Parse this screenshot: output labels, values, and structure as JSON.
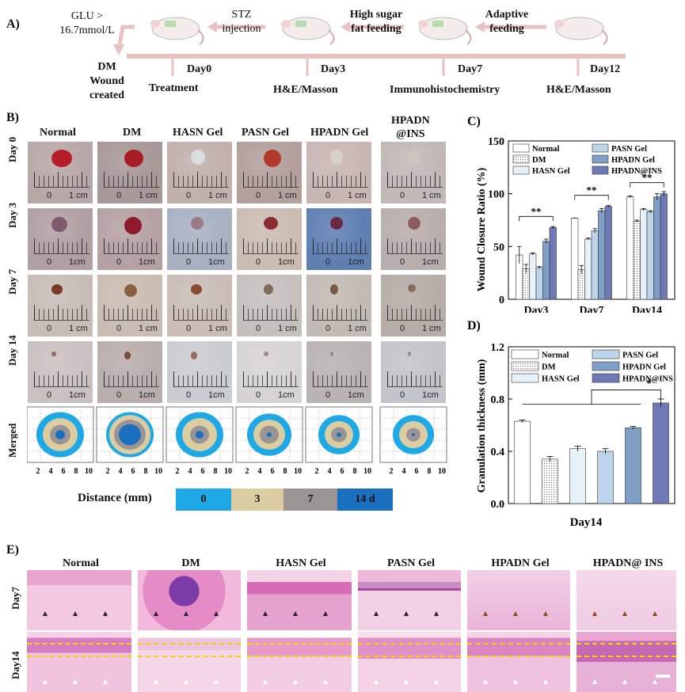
{
  "panel_a": {
    "letter": "A)",
    "glu": "GLU >",
    "glu2": "16.7mmol/L",
    "stz": "STZ",
    "stz2": "injection",
    "hsf": "High sugar",
    "hsf2": "fat feeding",
    "adaptive": "Adaptive",
    "adaptive2": "feeding",
    "dm1": "DM",
    "dm2": "Wound",
    "dm3": "created",
    "day0": "Day0",
    "day3": "Day3",
    "day7": "Day7",
    "day12": "Day12",
    "treatment": "Treatment",
    "he_masson1": "H&E/Masson",
    "immuno": "Immunohistochemistry",
    "he_masson2": "H&E/Masson"
  },
  "panel_b": {
    "letter": "B)",
    "columns": [
      "Normal",
      "DM",
      "HASN Gel",
      "PASN Gel",
      "HPADN Gel",
      "HPADN\n@INS"
    ],
    "col_hpadn_ins_1": "HPADN",
    "col_hpadn_ins_2": "@INS",
    "rows": [
      "Day 0",
      "Day 3",
      "Day 7",
      "Day 14",
      "Merged"
    ],
    "ruler_zero": "0",
    "ruler_cm": "1 cm",
    "ruler_cm_short": "1cm",
    "axis_ticks": [
      "2",
      "4",
      "6",
      "8",
      "10"
    ],
    "distance_label": "Distance (mm)",
    "legend": [
      {
        "label": "0",
        "color": "#1ea8e6"
      },
      {
        "label": "3",
        "color": "#dccca2"
      },
      {
        "label": "7",
        "color": "#9a9494"
      },
      {
        "label": "14 d",
        "color": "#1a6fbf"
      }
    ]
  },
  "chart_data": [
    {
      "type": "bar",
      "panel": "C)",
      "ylabel": "Wound Closure Ratio (%)",
      "xlabel": "",
      "categories": [
        "Day3",
        "Day7",
        "Day14"
      ],
      "ylim": [
        0,
        150
      ],
      "yticks": [
        "0",
        "50",
        "100",
        "150"
      ],
      "series": [
        {
          "name": "Normal",
          "values": [
            42,
            77,
            97
          ],
          "errors": [
            8,
            0,
            1
          ]
        },
        {
          "name": "DM",
          "values": [
            29,
            28,
            74
          ],
          "errors": [
            4,
            4,
            1
          ]
        },
        {
          "name": "HASN Gel",
          "values": [
            43,
            57,
            85
          ],
          "errors": [
            1,
            1,
            1
          ]
        },
        {
          "name": "PASN Gel",
          "values": [
            30,
            65,
            83
          ],
          "errors": [
            1,
            2,
            1
          ]
        },
        {
          "name": "HPADN Gel",
          "values": [
            55,
            84,
            97
          ],
          "errors": [
            2,
            2,
            3
          ]
        },
        {
          "name": "HPADN@INS",
          "values": [
            68,
            88,
            100
          ],
          "errors": [
            1,
            1,
            2
          ]
        }
      ],
      "annotations": [
        "**",
        "**",
        "**"
      ],
      "legend_position": "top"
    },
    {
      "type": "bar",
      "panel": "D)",
      "ylabel": "Granulation thickness (mm)",
      "xlabel": "Day14",
      "categories": [
        "Normal",
        "DM",
        "HASN Gel",
        "PASN Gel",
        "HPADN Gel",
        "HPADN@INS"
      ],
      "ylim": [
        0,
        1.2
      ],
      "yticks": [
        "0.0",
        "0.4",
        "0.8",
        "1.2"
      ],
      "values": [
        0.63,
        0.34,
        0.42,
        0.4,
        0.58,
        0.77
      ],
      "errors": [
        0.01,
        0.02,
        0.02,
        0.02,
        0.01,
        0.03
      ],
      "annotations": [
        "*"
      ],
      "legend_position": "top"
    }
  ],
  "panel_e": {
    "letter": "E)",
    "columns": [
      "Normal",
      "DM",
      "HASN Gel",
      "PASN Gel",
      "HPADN Gel",
      "HPADN@ INS"
    ],
    "rows": [
      "Day7",
      "Day14"
    ]
  },
  "colors": {
    "timeline": "#e8c2c2",
    "he_pink": "#e7a8cf",
    "he_purple": "#8a4aa8"
  }
}
